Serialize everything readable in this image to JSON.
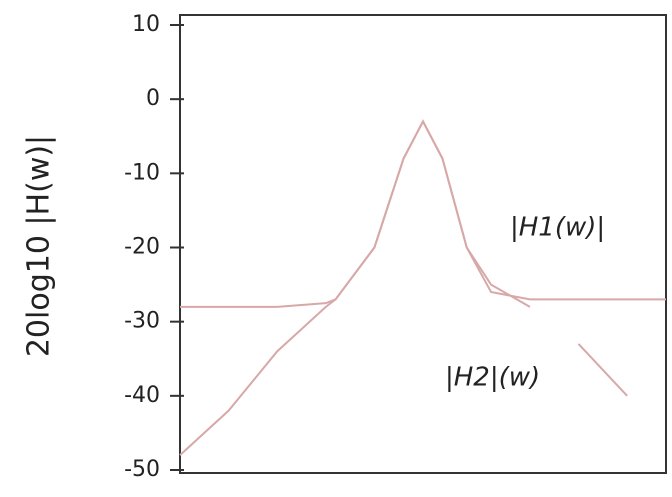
{
  "chart_data": {
    "type": "line",
    "y_label": "20log10 |H(w)|",
    "x": [
      0,
      1,
      2,
      3,
      3.2,
      4,
      4.6,
      5,
      5.4,
      5.9,
      6.4,
      7.2,
      7.4,
      8.2,
      9.2,
      10
    ],
    "series": [
      {
        "name": "|H1(w)|",
        "color": "#d8a8a8",
        "values": [
          -28,
          -28,
          -28,
          -27.5,
          -27,
          -20,
          -8,
          -3,
          -8,
          -20,
          -26,
          -27,
          -27,
          -27,
          -27,
          -27
        ]
      },
      {
        "name": "|H2|(w)",
        "color": "#d8a8a8",
        "values": [
          -48,
          -42,
          -34,
          -28,
          -27,
          -20,
          -8,
          -3,
          -8,
          -20,
          -25,
          -28,
          null,
          -33,
          -40,
          null
        ]
      }
    ],
    "xlim": [
      0,
      10
    ],
    "ylim": [
      -50,
      10
    ],
    "yticks": [
      10,
      0,
      -10,
      -20,
      -30,
      -40,
      -50
    ]
  }
}
